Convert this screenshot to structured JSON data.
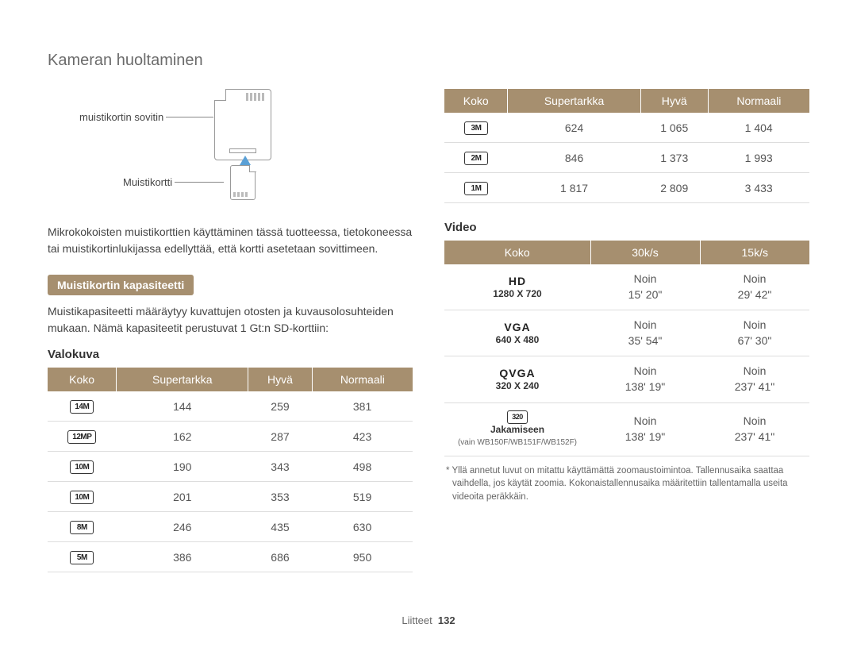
{
  "pageTitle": "Kameran huoltaminen",
  "sd": {
    "adapterLabel": "muistikortin sovitin",
    "microLabel": "Muistikortti"
  },
  "introParagraph": "Mikrokokoisten muistikorttien käyttäminen tässä tuotteessa, tietokoneessa tai muistikortinlukijassa edellyttää, että kortti asetetaan sovittimeen.",
  "capacity": {
    "chip": "Muistikortin kapasiteetti",
    "desc": "Muistikapasiteetti määräytyy kuvattujen otosten ja kuvausolosuhteiden mukaan. Nämä kapasiteetit perustuvat 1 Gt:n SD-korttiin:"
  },
  "photo": {
    "heading": "Valokuva",
    "headers": [
      "Koko",
      "Supertarkka",
      "Hyvä",
      "Normaali"
    ],
    "rows": [
      {
        "badge": "14M",
        "cells": [
          "144",
          "259",
          "381"
        ]
      },
      {
        "badge": "12MP",
        "cells": [
          "162",
          "287",
          "423"
        ]
      },
      {
        "badge": "10M",
        "cells": [
          "190",
          "343",
          "498"
        ]
      },
      {
        "badge": "10M",
        "cells": [
          "201",
          "353",
          "519"
        ]
      },
      {
        "badge": "8M",
        "cells": [
          "246",
          "435",
          "630"
        ]
      },
      {
        "badge": "5M",
        "cells": [
          "386",
          "686",
          "950"
        ]
      }
    ]
  },
  "photoTop": {
    "headers": [
      "Koko",
      "Supertarkka",
      "Hyvä",
      "Normaali"
    ],
    "rows": [
      {
        "badge": "3M",
        "cells": [
          "624",
          "1 065",
          "1 404"
        ]
      },
      {
        "badge": "2M",
        "cells": [
          "846",
          "1 373",
          "1 993"
        ]
      },
      {
        "badge": "1M",
        "cells": [
          "1 817",
          "2 809",
          "3 433"
        ]
      }
    ]
  },
  "video": {
    "heading": "Video",
    "headers": [
      "Koko",
      "30k/s",
      "15k/s"
    ],
    "rows": [
      {
        "main": "HD",
        "sub": "1280 X 720",
        "tiny": "",
        "c1a": "Noin",
        "c1b": "15' 20\"",
        "c2a": "Noin",
        "c2b": "29' 42\""
      },
      {
        "main": "VGA",
        "sub": "640 X 480",
        "tiny": "",
        "c1a": "Noin",
        "c1b": "35' 54\"",
        "c2a": "Noin",
        "c2b": "67' 30\""
      },
      {
        "main": "QVGA",
        "sub": "320 X 240",
        "tiny": "",
        "c1a": "Noin",
        "c1b": "138' 19\"",
        "c2a": "Noin",
        "c2b": "237' 41\""
      },
      {
        "main": "320",
        "sub": "Jakamiseen",
        "tiny": "(vain WB150F/WB151F/WB152F)",
        "c1a": "Noin",
        "c1b": "138' 19\"",
        "c2a": "Noin",
        "c2b": "237' 41\""
      }
    ]
  },
  "footnote": "* Yllä annetut luvut on mitattu käyttämättä zoomaustoimintoa. Tallennusaika saattaa vaihdella, jos käytät zoomia. Kokonaistallennusaika määritettiin tallentamalla useita videoita peräkkäin.",
  "footer": {
    "section": "Liitteet",
    "page": "132"
  },
  "colors": {
    "headerBg": "#a68f6f",
    "headerFg": "#ffffff",
    "rowBorder": "#dddddd",
    "text": "#444444"
  }
}
